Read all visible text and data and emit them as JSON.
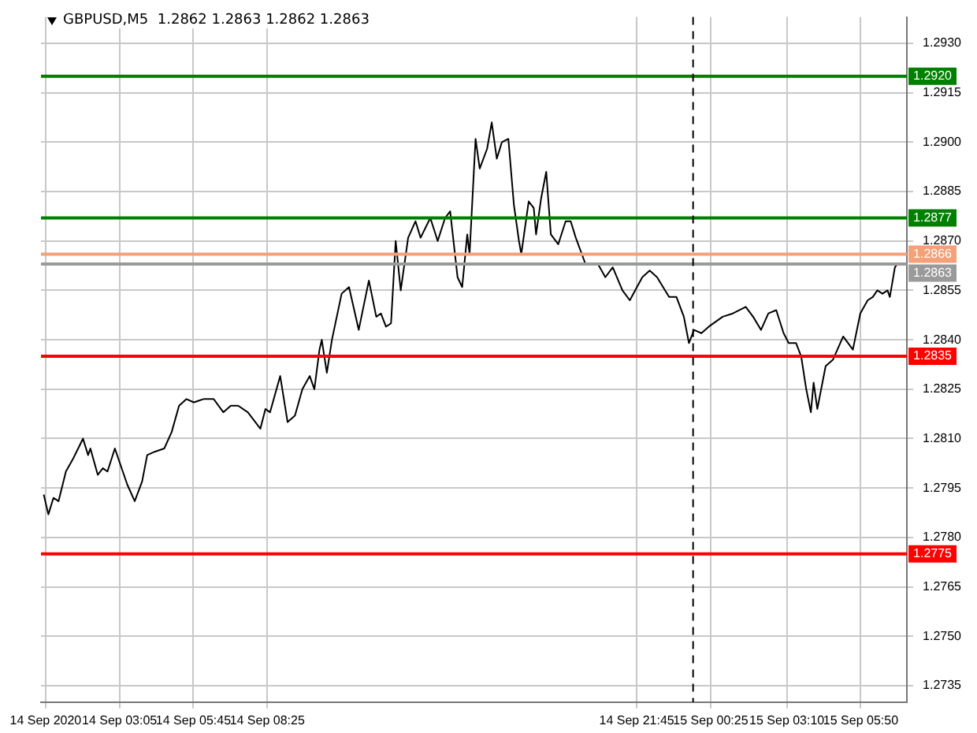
{
  "chart_data": {
    "type": "line",
    "title": "GBPUSD,M5  1.2862 1.2863 1.2862 1.2863",
    "x": [
      "2020-09-14T00:21",
      "2020-09-14T00:31",
      "2020-09-14T00:42",
      "2020-09-14T00:53",
      "2020-09-14T01:09",
      "2020-09-14T01:25",
      "2020-09-14T01:46",
      "2020-09-14T01:57",
      "2020-09-14T02:02",
      "2020-09-14T02:18",
      "2020-09-14T02:29",
      "2020-09-14T02:39",
      "2020-09-14T02:55",
      "2020-09-14T03:22",
      "2020-09-14T03:38",
      "2020-09-14T03:54",
      "2020-09-14T04:05",
      "2020-09-14T04:21",
      "2020-09-14T04:42",
      "2020-09-14T04:58",
      "2020-09-14T05:14",
      "2020-09-14T05:30",
      "2020-09-14T05:46",
      "2020-09-14T06:07",
      "2020-09-14T06:29",
      "2020-09-14T06:50",
      "2020-09-14T07:06",
      "2020-09-14T07:22",
      "2020-09-14T07:43",
      "2020-09-14T08:10",
      "2020-09-14T08:21",
      "2020-09-14T08:31",
      "2020-09-14T08:53",
      "2020-09-14T09:09",
      "2020-09-14T09:25",
      "2020-09-14T09:41",
      "2020-09-14T09:57",
      "2020-09-14T10:07",
      "2020-09-14T10:18",
      "2020-09-14T10:23",
      "2020-09-14T10:34",
      "2020-09-14T10:45",
      "2020-09-14T11:06",
      "2020-09-14T11:22",
      "2020-09-14T11:43",
      "2020-09-14T12:05",
      "2020-09-14T12:21",
      "2020-09-14T12:31",
      "2020-09-14T12:42",
      "2020-09-14T12:53",
      "2020-09-14T13:03",
      "2020-09-14T13:14",
      "2020-09-14T13:30",
      "2020-09-14T13:46",
      "2020-09-14T13:57",
      "2020-09-14T14:18",
      "2020-09-14T14:34",
      "2020-09-14T14:50",
      "2020-09-14T15:01",
      "2020-09-14T15:17",
      "2020-09-14T15:27",
      "2020-09-14T15:38",
      "2020-09-14T15:43",
      "2020-09-14T15:56",
      "2020-09-14T16:05",
      "2020-09-14T16:21",
      "2020-09-14T16:31",
      "2020-09-14T16:42",
      "2020-09-14T16:53",
      "2020-09-14T17:07",
      "2020-09-14T17:19",
      "2020-09-14T17:30",
      "2020-09-14T17:35",
      "2020-09-14T17:51",
      "2020-09-14T18:02",
      "2020-09-14T18:07",
      "2020-09-14T18:18",
      "2020-09-14T18:29",
      "2020-09-14T18:39",
      "2020-09-14T18:55",
      "2020-09-14T19:11",
      "2020-09-14T19:22",
      "2020-09-14T19:33",
      "2020-09-14T19:54",
      "2020-09-14T20:21",
      "2020-09-14T20:37",
      "2020-09-14T20:53",
      "2020-09-14T21:14",
      "2020-09-14T21:30",
      "2020-09-14T21:57",
      "2020-09-14T22:13",
      "2020-09-14T22:29",
      "2020-09-14T22:55",
      "2020-09-14T23:11",
      "2020-09-14T23:27",
      "2020-09-14T23:38",
      "2020-09-14T23:49",
      "2020-09-15T00:05",
      "2020-09-15T00:21",
      "2020-09-15T00:51",
      "2020-09-15T01:13",
      "2020-09-15T01:41",
      "2020-09-15T01:57",
      "2020-09-15T02:14",
      "2020-09-15T02:30",
      "2020-09-15T02:47",
      "2020-09-15T03:03",
      "2020-09-15T03:14",
      "2020-09-15T03:30",
      "2020-09-15T03:41",
      "2020-09-15T03:52",
      "2020-09-15T04:02",
      "2020-09-15T04:08",
      "2020-09-15T04:16",
      "2020-09-15T04:34",
      "2020-09-15T04:50",
      "2020-09-15T05:12",
      "2020-09-15T05:33",
      "2020-09-15T05:49",
      "2020-09-15T06:05",
      "2020-09-15T06:16",
      "2020-09-15T06:26",
      "2020-09-15T06:37",
      "2020-09-15T06:48",
      "2020-09-15T06:53",
      "2020-09-15T07:04",
      "2020-09-15T07:09"
    ],
    "series": [
      {
        "color": "#000000",
        "values": [
          1.2793,
          1.2787,
          1.2792,
          1.2791,
          1.28,
          1.2804,
          1.281,
          1.2805,
          1.2807,
          1.2799,
          1.2801,
          1.28,
          1.2807,
          1.2796,
          1.2791,
          1.2797,
          1.2805,
          1.2806,
          1.2807,
          1.2812,
          1.282,
          1.2822,
          1.2821,
          1.2822,
          1.2822,
          1.2818,
          1.282,
          1.282,
          1.2818,
          1.2813,
          1.2819,
          1.2818,
          1.2829,
          1.2815,
          1.2817,
          1.2825,
          1.2829,
          1.2825,
          1.2837,
          1.284,
          1.283,
          1.284,
          1.2854,
          1.2856,
          1.2843,
          1.2858,
          1.2847,
          1.2848,
          1.2844,
          1.2845,
          1.287,
          1.2855,
          1.2871,
          1.2876,
          1.2871,
          1.2877,
          1.287,
          1.2877,
          1.2879,
          1.2859,
          1.2856,
          1.2872,
          1.2866,
          1.2901,
          1.2892,
          1.2898,
          1.2906,
          1.2895,
          1.29,
          1.2901,
          1.2881,
          1.287,
          1.2866,
          1.2882,
          1.288,
          1.2872,
          1.2883,
          1.2891,
          1.2872,
          1.2869,
          1.2876,
          1.2876,
          1.2871,
          1.2863,
          1.2863,
          1.2859,
          1.2862,
          1.2855,
          1.2852,
          1.2859,
          1.2861,
          1.2859,
          1.2853,
          1.2853,
          1.2847,
          1.2839,
          1.2843,
          1.2842,
          1.2844,
          1.2847,
          1.2848,
          1.285,
          1.2847,
          1.2843,
          1.2848,
          1.2849,
          1.2842,
          1.2839,
          1.2839,
          1.2835,
          1.2825,
          1.2818,
          1.2827,
          1.2819,
          1.2832,
          1.2834,
          1.2841,
          1.2837,
          1.2848,
          1.2852,
          1.2853,
          1.2855,
          1.2854,
          1.2855,
          1.2853,
          1.2862,
          1.2863
        ]
      }
    ],
    "xlim": [
      "2020-09-14T00:15",
      "2020-09-15T07:30"
    ],
    "xticks": [
      {
        "value": "2020-09-14T00:25",
        "label": "14 Sep 2020"
      },
      {
        "value": "2020-09-14T03:05",
        "label": "14 Sep 03:05"
      },
      {
        "value": "2020-09-14T05:45",
        "label": "14 Sep 05:45"
      },
      {
        "value": "2020-09-14T08:25",
        "label": "14 Sep 08:25"
      },
      {
        "value": "2020-09-14T21:45",
        "label": "14 Sep 21:45"
      },
      {
        "value": "2020-09-15T00:25",
        "label": "15 Sep 00:25"
      },
      {
        "value": "2020-09-15T03:10",
        "label": "15 Sep 03:10"
      },
      {
        "value": "2020-09-15T05:50",
        "label": "15 Sep 05:50"
      }
    ],
    "ylim": [
      1.273,
      1.2938
    ],
    "yticks": [
      {
        "value": 1.2735,
        "label": "1.2735"
      },
      {
        "value": 1.275,
        "label": "1.2750"
      },
      {
        "value": 1.2765,
        "label": "1.2765"
      },
      {
        "value": 1.278,
        "label": "1.2780"
      },
      {
        "value": 1.2795,
        "label": "1.2795"
      },
      {
        "value": 1.281,
        "label": "1.2810"
      },
      {
        "value": 1.2825,
        "label": "1.2825"
      },
      {
        "value": 1.284,
        "label": "1.2840"
      },
      {
        "value": 1.2855,
        "label": "1.2855"
      },
      {
        "value": 1.287,
        "label": "1.2870"
      },
      {
        "value": 1.2885,
        "label": "1.2885"
      },
      {
        "value": 1.29,
        "label": "1.2900"
      },
      {
        "value": 1.2915,
        "label": "1.2915"
      },
      {
        "value": 1.293,
        "label": "1.2930"
      }
    ],
    "ref_lines": [
      {
        "axis": "y",
        "value": 1.292,
        "label": "1.2920",
        "color": "#008000"
      },
      {
        "axis": "y",
        "value": 1.2877,
        "label": "1.2877",
        "color": "#008000"
      },
      {
        "axis": "y",
        "value": 1.2866,
        "label": "1.2866",
        "color": "#f4a078"
      },
      {
        "axis": "y",
        "value": 1.2863,
        "label": "1.2863",
        "color": "#9a9a9a"
      },
      {
        "axis": "y",
        "value": 1.2835,
        "label": "1.2835",
        "color": "#ff0000"
      },
      {
        "axis": "y",
        "value": 1.2775,
        "label": "1.2775",
        "color": "#ff0000"
      },
      {
        "axis": "x",
        "value": "2020-09-14T23:47",
        "color": "#000000",
        "line_style": "dashed"
      }
    ],
    "grid": true,
    "legend": false,
    "marker": "none",
    "line_style": "solid"
  }
}
